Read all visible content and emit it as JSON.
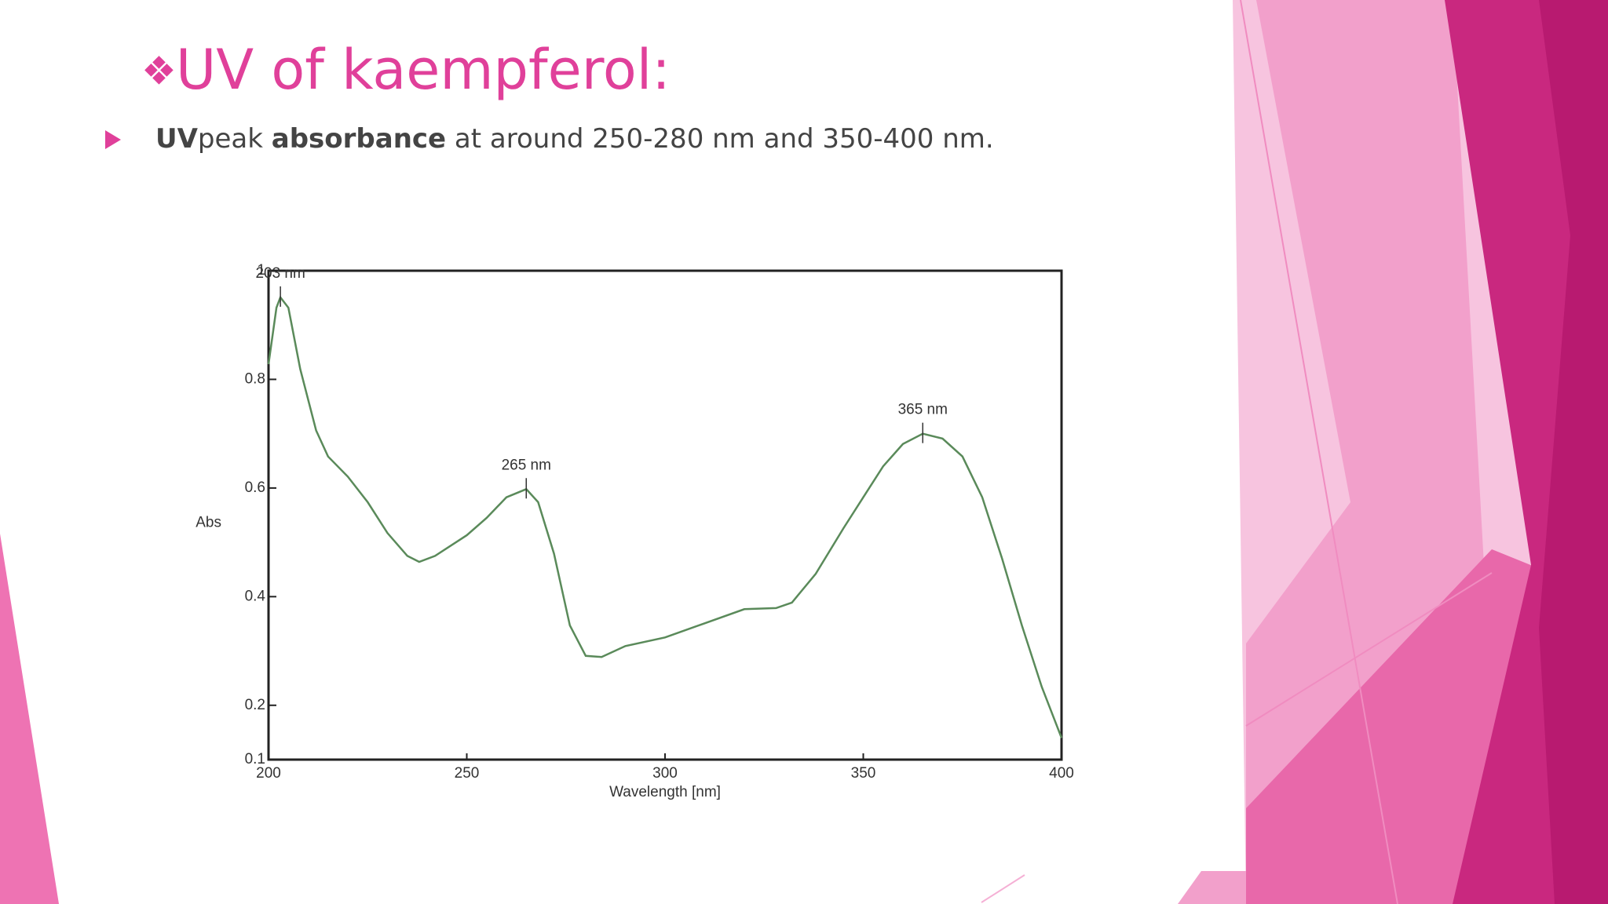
{
  "slide": {
    "title_marker": "❖",
    "title": "UV of kaempferol:",
    "bullet": [
      {
        "text": "UV",
        "bold": true
      },
      {
        "text": "peak ",
        "bold": false
      },
      {
        "text": "absorbance",
        "bold": true
      },
      {
        "text": " at around 250-280 nm and 350-400 nm.",
        "bold": false
      }
    ]
  },
  "chart_data": {
    "type": "line",
    "x_label": "Wavelength [nm]",
    "y_label": "Abs",
    "xlim": [
      200,
      400
    ],
    "ylim": [
      0.1,
      1
    ],
    "xticks": [
      200,
      250,
      300,
      350,
      400
    ],
    "yticks": [
      0.1,
      0.2,
      0.4,
      0.6,
      0.8,
      1
    ],
    "series": [
      {
        "color": "#5a8a5a",
        "x": [
          200,
          202,
          203,
          205,
          208,
          212,
          215,
          220,
          225,
          230,
          235,
          238,
          242,
          250,
          255,
          260,
          265,
          268,
          272,
          276,
          280,
          284,
          290,
          300,
          310,
          320,
          328,
          332,
          338,
          345,
          350,
          355,
          360,
          365,
          370,
          375,
          380,
          385,
          390,
          395,
          400
        ],
        "values": [
          0.828,
          0.932,
          0.951,
          0.932,
          0.819,
          0.706,
          0.658,
          0.621,
          0.574,
          0.517,
          0.475,
          0.464,
          0.475,
          0.513,
          0.545,
          0.583,
          0.598,
          0.574,
          0.479,
          0.347,
          0.291,
          0.289,
          0.309,
          0.325,
          0.351,
          0.377,
          0.379,
          0.389,
          0.442,
          0.526,
          0.583,
          0.64,
          0.681,
          0.7,
          0.691,
          0.658,
          0.583,
          0.47,
          0.347,
          0.234,
          0.14
        ]
      }
    ],
    "annotations": [
      {
        "text": "203 nm",
        "x": 203,
        "y": 0.951
      },
      {
        "text": "265 nm",
        "x": 265,
        "y": 0.598
      },
      {
        "text": "365 nm",
        "x": 365,
        "y": 0.7
      }
    ]
  }
}
